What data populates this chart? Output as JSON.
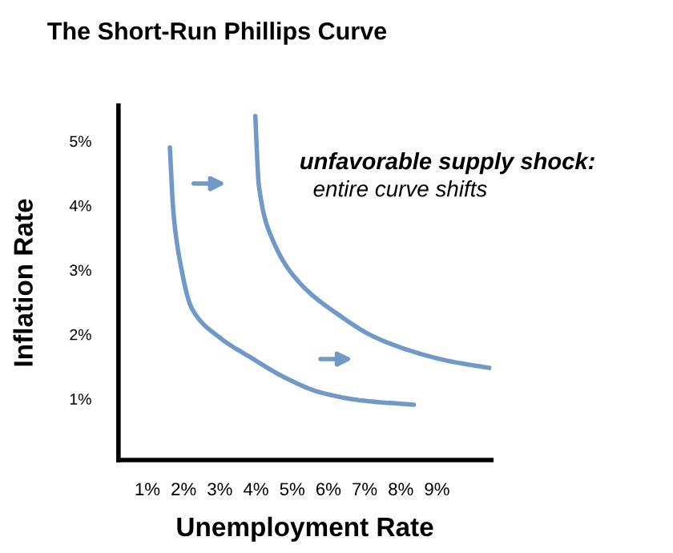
{
  "chart_data": {
    "type": "line",
    "title": "The Short-Run Phillips Curve",
    "xlabel": "Unemployment Rate",
    "ylabel": "Inflation Rate",
    "series": [
      {
        "color": "#7199c7",
        "x": [
          1.62,
          1.72,
          1.87,
          2.23,
          3.0,
          3.86,
          4.8,
          5.78,
          7.0,
          8.36
        ],
        "values": [
          4.9,
          3.89,
          3.23,
          2.4,
          1.95,
          1.64,
          1.33,
          1.1,
          0.97,
          0.91
        ]
      },
      {
        "color": "#7199c7",
        "x": [
          3.98,
          4.08,
          4.45,
          5.19,
          6.37,
          7.2,
          8.14,
          9.3,
          10.45
        ],
        "values": [
          5.39,
          4.31,
          3.48,
          2.81,
          2.27,
          1.98,
          1.77,
          1.59,
          1.48
        ]
      }
    ],
    "annotations": [
      "unfavorable supply shock:",
      "entire curve shifts"
    ],
    "xlim": [
      0.2,
      10.5
    ],
    "ylim": [
      0.05,
      5.55
    ],
    "xticks": [
      {
        "value": 1,
        "label": "1%"
      },
      {
        "value": 2,
        "label": "2%"
      },
      {
        "value": 3,
        "label": "3%"
      },
      {
        "value": 4,
        "label": "4%"
      },
      {
        "value": 5,
        "label": "5%"
      },
      {
        "value": 6,
        "label": "6%"
      },
      {
        "value": 7,
        "label": "7%"
      },
      {
        "value": 8,
        "label": "8%"
      },
      {
        "value": 9,
        "label": "9%"
      }
    ],
    "yticks": [
      {
        "value": 1,
        "label": "1%"
      },
      {
        "value": 2,
        "label": "2%"
      },
      {
        "value": 3,
        "label": "3%"
      },
      {
        "value": 4,
        "label": "4%"
      },
      {
        "value": 5,
        "label": "5%"
      }
    ],
    "grid": false,
    "legend": false,
    "marker": "none",
    "line_style": "solid"
  }
}
